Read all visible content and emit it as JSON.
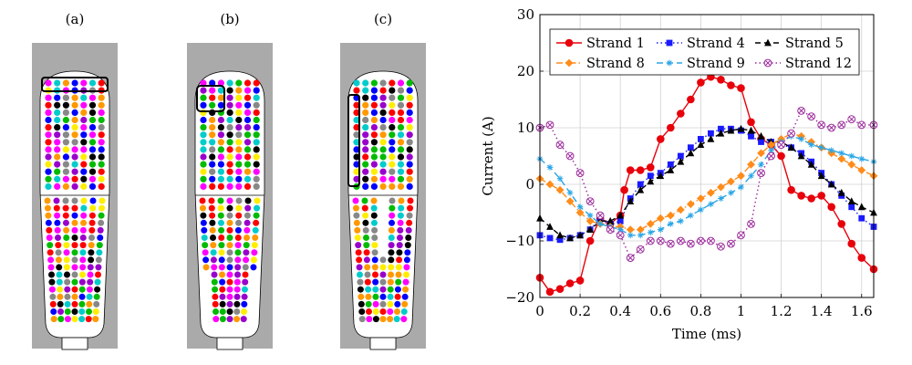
{
  "panels": [
    {
      "label": "(a)"
    },
    {
      "label": "(b)"
    },
    {
      "label": "(c)"
    }
  ],
  "palette": [
    "#ff0000",
    "#ff9900",
    "#0000ff",
    "#00bb00",
    "#ff00ff",
    "#00cccc",
    "#888888",
    "#9900cc",
    "#ffee00",
    "#000000"
  ],
  "chart_data": {
    "type": "line",
    "xlabel": "Time (ms)",
    "ylabel": "Current (A)",
    "xlim": [
      0,
      1.66
    ],
    "ylim": [
      -20,
      30
    ],
    "xticks": [
      0,
      0.2,
      0.4,
      0.6,
      0.8,
      1,
      1.2,
      1.4,
      1.6
    ],
    "xtick_labels": [
      "0",
      "0.2",
      "0.4",
      "0.6",
      "0.8",
      "1",
      "1.2",
      "1.4",
      "1.6"
    ],
    "yticks": [
      -20,
      -10,
      0,
      10,
      20,
      30
    ],
    "ytick_labels": [
      "−20",
      "−10",
      "0",
      "10",
      "20",
      "30"
    ],
    "grid": true,
    "legend_position": "top-right",
    "series": [
      {
        "name": "Strand 1",
        "color": "#e8000b",
        "dash": "",
        "marker": "circle",
        "x": [
          0,
          0.05,
          0.1,
          0.15,
          0.2,
          0.25,
          0.3,
          0.35,
          0.4,
          0.42,
          0.45,
          0.5,
          0.55,
          0.6,
          0.65,
          0.7,
          0.75,
          0.8,
          0.85,
          0.9,
          0.95,
          1.0,
          1.05,
          1.1,
          1.15,
          1.2,
          1.25,
          1.3,
          1.35,
          1.4,
          1.45,
          1.5,
          1.55,
          1.6,
          1.66
        ],
        "y": [
          -16.5,
          -19,
          -18.5,
          -17.5,
          -17,
          -10,
          -6,
          -7,
          -5.5,
          -1,
          2.5,
          2.5,
          3,
          8,
          10,
          12.5,
          15,
          18,
          19,
          18.5,
          17.5,
          17,
          11,
          8,
          7,
          5,
          -1,
          -2,
          -2.5,
          -2,
          -4,
          -7,
          -10.5,
          -13,
          -15
        ]
      },
      {
        "name": "Strand 4",
        "color": "#1a1aff",
        "dash": "1.5 3",
        "marker": "square",
        "x": [
          0,
          0.05,
          0.1,
          0.15,
          0.2,
          0.25,
          0.3,
          0.35,
          0.4,
          0.45,
          0.5,
          0.55,
          0.6,
          0.65,
          0.7,
          0.75,
          0.8,
          0.85,
          0.9,
          0.95,
          1.0,
          1.05,
          1.1,
          1.15,
          1.2,
          1.25,
          1.3,
          1.35,
          1.4,
          1.45,
          1.5,
          1.55,
          1.6,
          1.66
        ],
        "y": [
          -9,
          -9.5,
          -9.8,
          -9.5,
          -9,
          -8,
          -6,
          -7,
          -6.5,
          -2.5,
          0,
          1.5,
          2,
          3.5,
          5,
          6.5,
          8,
          9,
          9.8,
          9.8,
          9.5,
          8.5,
          7.5,
          7.5,
          7,
          6.5,
          5.5,
          4,
          2,
          0,
          -2,
          -4,
          -6,
          -7.5
        ]
      },
      {
        "name": "Strand 5",
        "color": "#000000",
        "dash": "6 4",
        "marker": "triangle",
        "x": [
          0,
          0.05,
          0.1,
          0.15,
          0.2,
          0.25,
          0.3,
          0.35,
          0.4,
          0.45,
          0.5,
          0.55,
          0.6,
          0.65,
          0.7,
          0.75,
          0.8,
          0.85,
          0.9,
          0.95,
          1.0,
          1.05,
          1.1,
          1.15,
          1.2,
          1.25,
          1.3,
          1.35,
          1.4,
          1.45,
          1.5,
          1.55,
          1.6,
          1.66
        ],
        "y": [
          -6,
          -7.5,
          -9,
          -9.5,
          -9,
          -8,
          -6.5,
          -6.5,
          -5.5,
          -3,
          -1,
          0.5,
          1.5,
          2.5,
          4,
          5.5,
          7,
          8,
          9,
          9.5,
          9.8,
          9.5,
          8.5,
          7.5,
          7.5,
          6.5,
          5,
          3.5,
          1.5,
          0,
          -1.5,
          -3,
          -4,
          -5
        ]
      },
      {
        "name": "Strand 8",
        "color": "#ff8c1a",
        "dash": "7 3 1.5 3",
        "marker": "diamond",
        "x": [
          0,
          0.05,
          0.1,
          0.15,
          0.2,
          0.25,
          0.3,
          0.35,
          0.4,
          0.45,
          0.5,
          0.55,
          0.6,
          0.65,
          0.7,
          0.75,
          0.8,
          0.85,
          0.9,
          0.95,
          1.0,
          1.05,
          1.1,
          1.15,
          1.2,
          1.25,
          1.3,
          1.35,
          1.4,
          1.45,
          1.5,
          1.55,
          1.6,
          1.66
        ],
        "y": [
          1,
          0,
          -1,
          -3,
          -5,
          -6.5,
          -7,
          -7.5,
          -7.5,
          -8,
          -8,
          -7,
          -6,
          -5.5,
          -4.5,
          -3.5,
          -2.5,
          -1.5,
          -0.5,
          0.5,
          1.5,
          3.5,
          5.5,
          7,
          8,
          9,
          8.5,
          7.5,
          6.5,
          5.5,
          4.5,
          3.5,
          2.5,
          1.5
        ]
      },
      {
        "name": "Strand 9",
        "color": "#2aa5e6",
        "dash": "7 4",
        "marker": "star",
        "x": [
          0,
          0.05,
          0.1,
          0.15,
          0.2,
          0.25,
          0.3,
          0.35,
          0.4,
          0.45,
          0.5,
          0.55,
          0.6,
          0.65,
          0.7,
          0.75,
          0.8,
          0.85,
          0.9,
          0.95,
          1.0,
          1.05,
          1.1,
          1.15,
          1.2,
          1.25,
          1.3,
          1.35,
          1.4,
          1.45,
          1.5,
          1.55,
          1.6,
          1.66
        ],
        "y": [
          4.5,
          3,
          1,
          -1.5,
          -4,
          -5.5,
          -7,
          -7.5,
          -8,
          -9,
          -9,
          -8.5,
          -8,
          -7,
          -6.5,
          -5.5,
          -4.5,
          -3.5,
          -2.5,
          -1.5,
          -0.5,
          1.5,
          3.5,
          6,
          7.5,
          8.5,
          8,
          7,
          6.5,
          6,
          5.5,
          5,
          4.5,
          4
        ]
      },
      {
        "name": "Strand 12",
        "color": "#9b2a9b",
        "dash": "1.5 3",
        "marker": "circle-cross",
        "x": [
          0,
          0.05,
          0.1,
          0.15,
          0.2,
          0.25,
          0.3,
          0.35,
          0.4,
          0.45,
          0.5,
          0.55,
          0.6,
          0.65,
          0.7,
          0.75,
          0.8,
          0.85,
          0.9,
          0.95,
          1.0,
          1.05,
          1.1,
          1.15,
          1.2,
          1.25,
          1.3,
          1.35,
          1.4,
          1.45,
          1.5,
          1.55,
          1.6,
          1.66
        ],
        "y": [
          10,
          10.5,
          7,
          5,
          2,
          -3,
          -5.5,
          -8,
          -9,
          -13,
          -11.5,
          -10,
          -10,
          -10.5,
          -10,
          -10.5,
          -10,
          -10,
          -11,
          -10.5,
          -9,
          -7,
          2,
          5,
          7,
          9,
          13,
          12,
          10.5,
          10,
          10.5,
          11.5,
          10.5,
          10.5
        ]
      }
    ]
  }
}
